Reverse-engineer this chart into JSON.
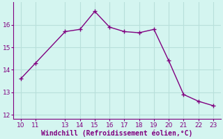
{
  "x": [
    10,
    11,
    13,
    14,
    15,
    16,
    17,
    18,
    19,
    20,
    21,
    22,
    23
  ],
  "y": [
    13.6,
    14.3,
    15.7,
    15.8,
    16.6,
    15.9,
    15.7,
    15.65,
    15.8,
    14.4,
    12.9,
    12.6,
    12.4
  ],
  "line_color": "#800080",
  "marker": "+",
  "marker_size": 4,
  "linewidth": 1.0,
  "background_color": "#d4f5f0",
  "grid_color": "#b8e0db",
  "xlabel": "Windchill (Refroidissement éolien,°C)",
  "xlabel_color": "#800080",
  "xlabel_fontsize": 7.0,
  "tick_color": "#800080",
  "tick_fontsize": 6.5,
  "xlim": [
    9.5,
    23.5
  ],
  "ylim": [
    11.8,
    17.0
  ],
  "yticks": [
    12,
    13,
    14,
    15,
    16
  ],
  "xticks": [
    10,
    11,
    13,
    14,
    15,
    16,
    17,
    18,
    19,
    20,
    21,
    22,
    23
  ],
  "spine_color": "#800080"
}
